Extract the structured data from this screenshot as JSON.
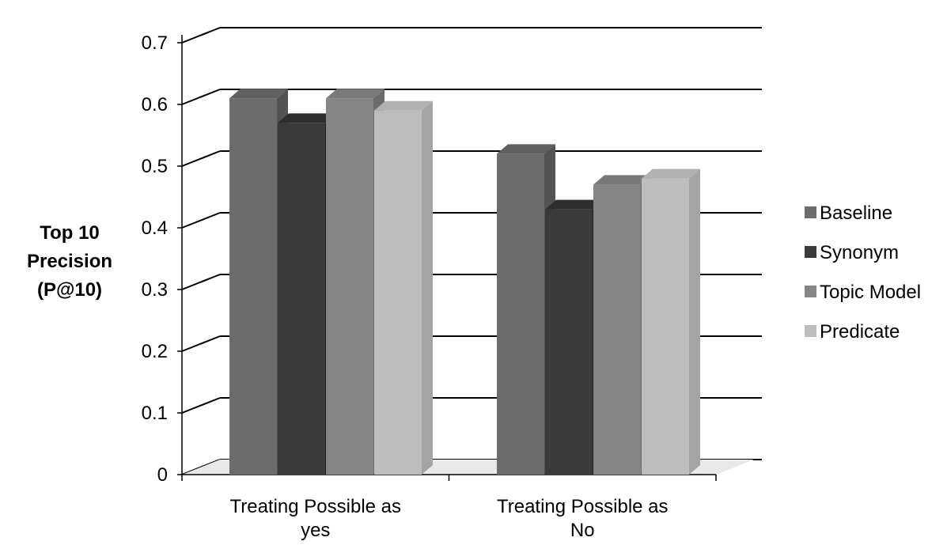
{
  "chart_data": {
    "type": "bar",
    "style": "3d-clustered-column",
    "ylabel": [
      "Top 10",
      "Precision",
      "(P@10)"
    ],
    "xlabel": "",
    "title": "",
    "ylim": [
      0,
      0.7
    ],
    "yticks": [
      0,
      0.1,
      0.2,
      0.3,
      0.4,
      0.5,
      0.6,
      0.7
    ],
    "ytick_labels": [
      "0",
      "0.1",
      "0.2",
      "0.3",
      "0.4",
      "0.5",
      "0.6",
      "0.7"
    ],
    "grid": true,
    "legend_position": "right",
    "categories": [
      [
        "Treating Possible as",
        "yes"
      ],
      [
        "Treating Possible as",
        "No"
      ]
    ],
    "series": [
      {
        "name": "Baseline",
        "values": [
          0.61,
          0.52
        ],
        "color": "#6c6c6c"
      },
      {
        "name": "Synonym",
        "values": [
          0.57,
          0.43
        ],
        "color": "#3a3a3a"
      },
      {
        "name": "Topic Model",
        "values": [
          0.61,
          0.47
        ],
        "color": "#858585"
      },
      {
        "name": "Predicate",
        "values": [
          0.59,
          0.48
        ],
        "color": "#bdbdbd"
      }
    ]
  }
}
